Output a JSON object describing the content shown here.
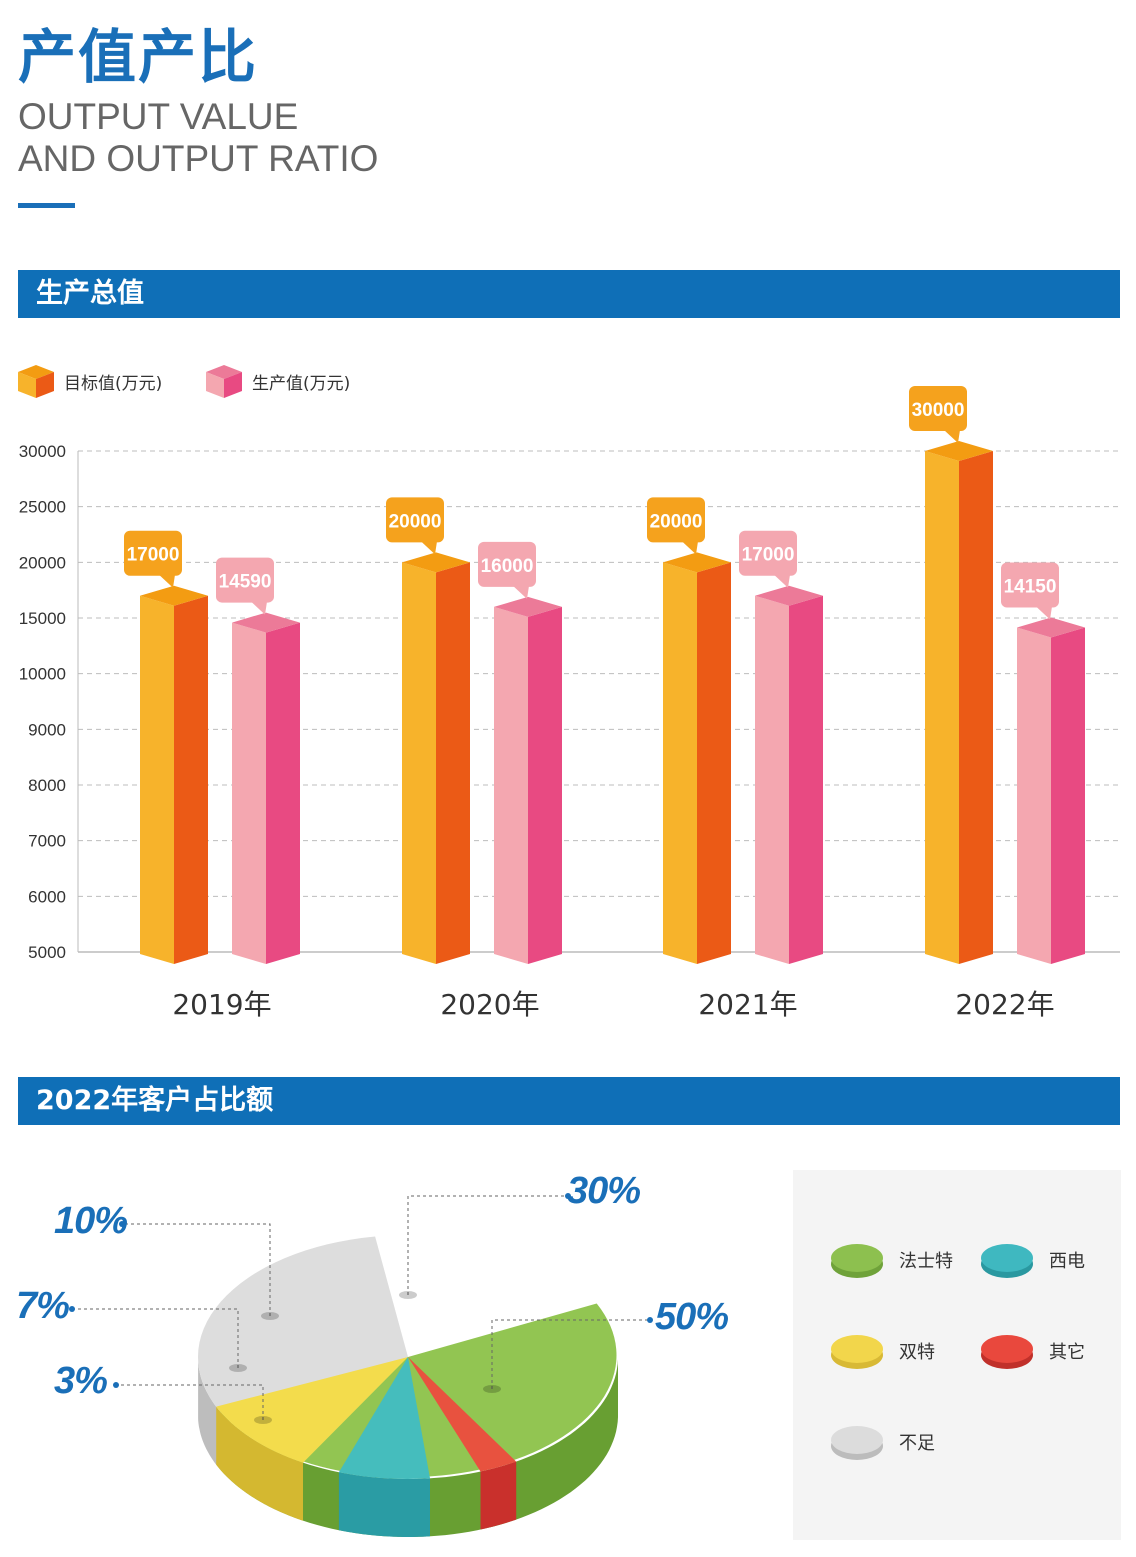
{
  "header": {
    "title_cn": "产值产比",
    "title_en_line1": "OUTPUT VALUE",
    "title_en_line2": "AND OUTPUT RATIO"
  },
  "section1": {
    "title": "生产总值"
  },
  "section2": {
    "title": "2022年客户占比额"
  },
  "colors": {
    "accent": "#0f6fb7",
    "target_front": "#f7b32b",
    "target_side": "#eb5a16",
    "target_top": "#f39c12",
    "actual_front": "#f4a7b0",
    "actual_side": "#e84a82",
    "actual_top": "#ec7a98"
  },
  "chart_data": [
    {
      "type": "bar",
      "categories": [
        "2019年",
        "2020年",
        "2021年",
        "2022年"
      ],
      "series": [
        {
          "name": "目标值(万元)",
          "values": [
            17000,
            20000,
            20000,
            30000
          ],
          "value_labels": [
            "17000",
            "20000",
            "20000",
            "30000"
          ]
        },
        {
          "name": "生产值(万元)",
          "values": [
            14590,
            16000,
            17000,
            14150
          ],
          "value_labels": [
            "14590",
            "16000",
            "17000",
            "14150"
          ]
        }
      ],
      "yticks": [
        5000,
        6000,
        7000,
        8000,
        9000,
        10000,
        15000,
        20000,
        25000,
        30000
      ],
      "ytick_labels": [
        "5000",
        "6000",
        "7000",
        "8000",
        "9000",
        "10000",
        "15000",
        "20000",
        "25000",
        "30000"
      ],
      "grid": true,
      "legend": "top-left"
    },
    {
      "type": "pie",
      "title": "2022年客户占比额",
      "labels": [
        "法士特",
        "不足",
        "双特",
        "西电",
        "其它"
      ],
      "values": [
        50,
        30,
        10,
        7,
        3
      ],
      "value_labels": [
        "50%",
        "30%",
        "10%",
        "7%",
        "3%"
      ],
      "colors": [
        "#92c552",
        "#dddddd",
        "#f3dc4c",
        "#45bdbd",
        "#e8523f"
      ],
      "legend": "right"
    }
  ],
  "pie_legend": {
    "items": [
      {
        "label": "法士特",
        "color": "#8dc04f",
        "shade": "#6fa23a"
      },
      {
        "label": "西电",
        "color": "#3fb8c0",
        "shade": "#2a98a0"
      },
      {
        "label": "双特",
        "color": "#f2d64b",
        "shade": "#d8b935"
      },
      {
        "label": "其它",
        "color": "#e9483d",
        "shade": "#c0302a"
      },
      {
        "label": "不足",
        "color": "#dcdcdc",
        "shade": "#bcbcbc"
      }
    ]
  }
}
